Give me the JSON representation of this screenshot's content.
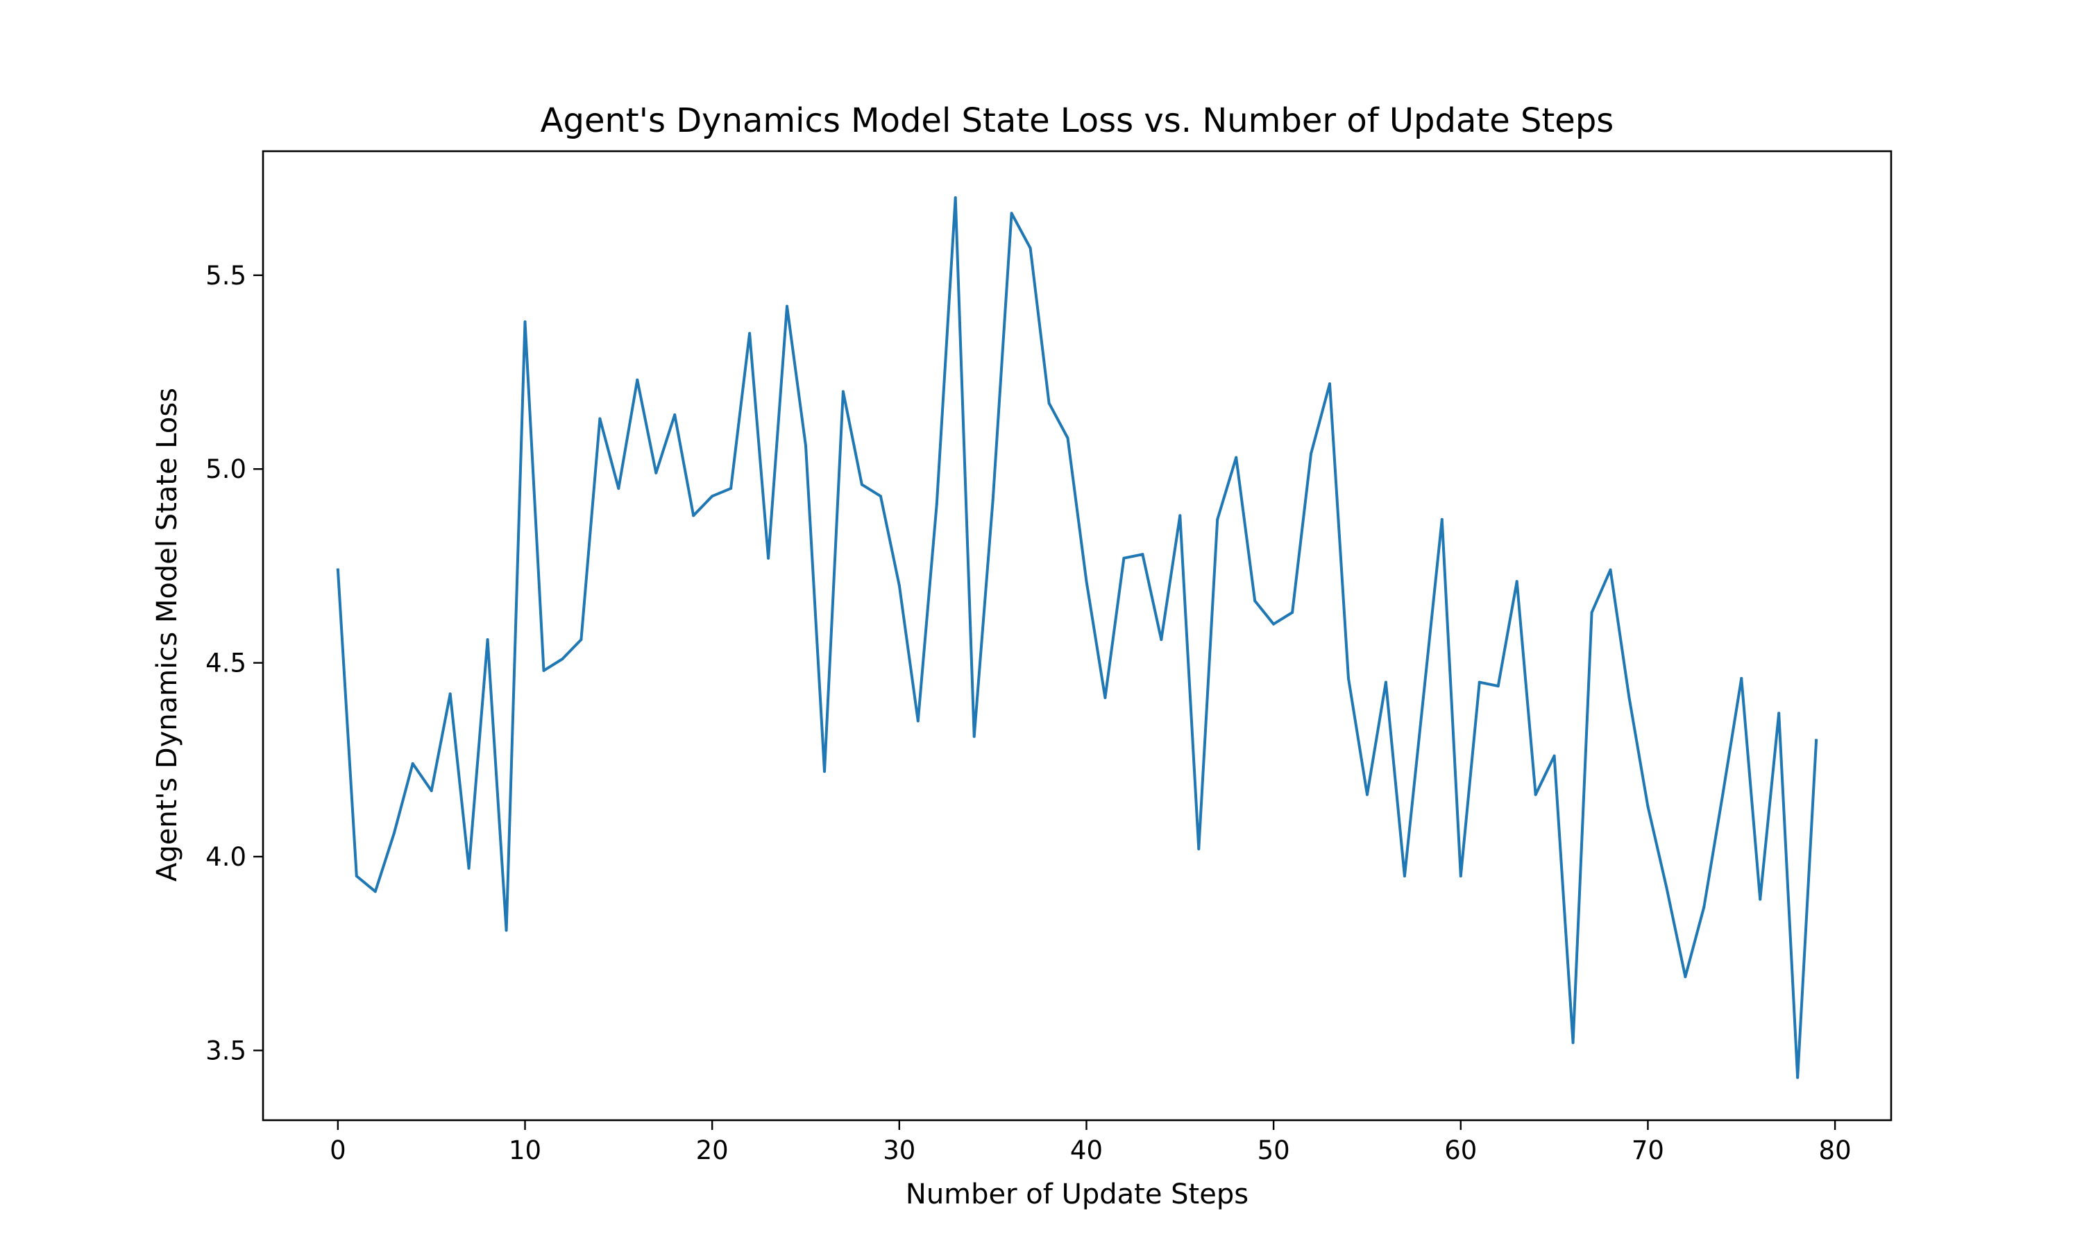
{
  "chart_data": {
    "type": "line",
    "title": "Agent's Dynamics Model State Loss vs. Number of Update Steps",
    "xlabel": "Number of Update Steps",
    "ylabel": "Agent's Dynamics Model State Loss",
    "xlim": [
      -4,
      83
    ],
    "ylim": [
      3.32,
      5.82
    ],
    "xticks": [
      0,
      10,
      20,
      30,
      40,
      50,
      60,
      70,
      80
    ],
    "yticks": [
      3.5,
      4.0,
      4.5,
      5.0,
      5.5
    ],
    "xtick_labels": [
      "0",
      "10",
      "20",
      "30",
      "40",
      "50",
      "60",
      "70",
      "80"
    ],
    "ytick_labels": [
      "3.5",
      "4.0",
      "4.5",
      "5.0",
      "5.5"
    ],
    "grid": false,
    "color": "#1f77b4",
    "series": [
      {
        "x": [
          0,
          1,
          2,
          3,
          4,
          5,
          6,
          7,
          8,
          9,
          10,
          11,
          12,
          13,
          14,
          15,
          16,
          17,
          18,
          19,
          20,
          21,
          22,
          23,
          24,
          25,
          26,
          27,
          28,
          29,
          30,
          31,
          32,
          33,
          34,
          35,
          36,
          37,
          38,
          39,
          40,
          41,
          42,
          43,
          44,
          45,
          46,
          47,
          48,
          49,
          50,
          51,
          52,
          53,
          54,
          55,
          56,
          57,
          58,
          59,
          60,
          61,
          62,
          63,
          64,
          65,
          66,
          67,
          68,
          69,
          70,
          71,
          72,
          73,
          74,
          75,
          76,
          77,
          78,
          79
        ],
        "values": [
          4.74,
          3.95,
          3.91,
          4.06,
          4.24,
          4.17,
          4.42,
          3.97,
          4.56,
          3.81,
          5.38,
          4.48,
          4.51,
          4.56,
          5.13,
          4.95,
          5.23,
          4.99,
          5.14,
          4.88,
          4.93,
          4.95,
          5.35,
          4.77,
          5.42,
          5.06,
          4.22,
          5.2,
          4.96,
          4.93,
          4.7,
          4.35,
          4.91,
          5.7,
          4.31,
          4.92,
          5.66,
          5.57,
          5.17,
          5.08,
          4.71,
          4.41,
          4.77,
          4.78,
          4.56,
          4.88,
          4.02,
          4.87,
          5.03,
          4.66,
          4.6,
          4.63,
          5.04,
          5.22,
          4.46,
          4.16,
          4.45,
          3.95,
          4.41,
          4.87,
          3.95,
          4.45,
          4.44,
          4.71,
          4.16,
          4.26,
          3.52,
          4.63,
          4.74,
          4.41,
          4.13,
          3.92,
          3.69,
          3.87,
          4.16,
          4.46,
          3.89,
          4.37,
          3.43,
          4.3
        ]
      }
    ]
  }
}
